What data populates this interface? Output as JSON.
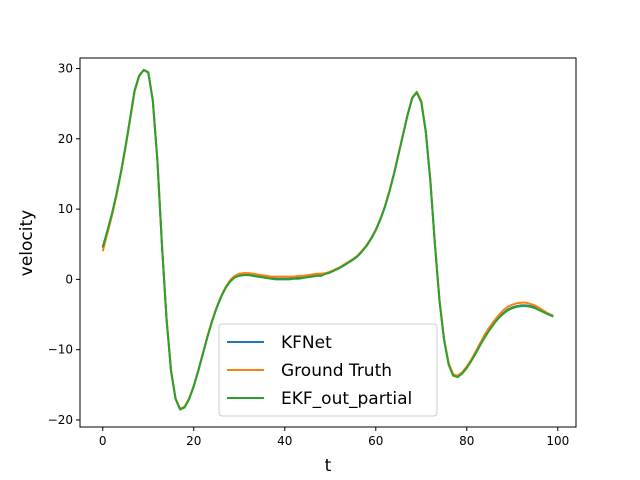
{
  "chart_data": {
    "type": "line",
    "title": "",
    "xlabel": "t",
    "ylabel": "velocity",
    "xlim": [
      -5,
      104
    ],
    "ylim": [
      -21,
      31.5
    ],
    "xticks": [
      0,
      20,
      40,
      60,
      80,
      100
    ],
    "yticks": [
      -20,
      -10,
      0,
      10,
      20,
      30
    ],
    "grid": false,
    "legend_position": "lower-center",
    "x": [
      0,
      1,
      2,
      3,
      4,
      5,
      6,
      7,
      8,
      9,
      10,
      11,
      12,
      13,
      14,
      15,
      16,
      17,
      18,
      19,
      20,
      21,
      22,
      23,
      24,
      25,
      26,
      27,
      28,
      29,
      30,
      31,
      32,
      33,
      34,
      35,
      36,
      37,
      38,
      39,
      40,
      41,
      42,
      43,
      44,
      45,
      46,
      47,
      48,
      49,
      50,
      51,
      52,
      53,
      54,
      55,
      56,
      57,
      58,
      59,
      60,
      61,
      62,
      63,
      64,
      65,
      66,
      67,
      68,
      69,
      70,
      71,
      72,
      73,
      74,
      75,
      76,
      77,
      78,
      79,
      80,
      81,
      82,
      83,
      84,
      85,
      86,
      87,
      88,
      89,
      90,
      91,
      92,
      93,
      94,
      95,
      96,
      97,
      98,
      99
    ],
    "series": [
      {
        "name": "KFNet",
        "color": "#1f77b4",
        "values": [
          4.5,
          6.8,
          9.2,
          12.0,
          15.2,
          18.8,
          22.8,
          26.8,
          29.0,
          29.8,
          29.5,
          25.5,
          17.0,
          5.0,
          -5.5,
          -13.0,
          -17.0,
          -18.5,
          -18.2,
          -17.0,
          -15.2,
          -13.0,
          -10.6,
          -8.2,
          -6.0,
          -4.1,
          -2.5,
          -1.2,
          -0.3,
          0.3,
          0.6,
          0.7,
          0.7,
          0.6,
          0.5,
          0.4,
          0.3,
          0.2,
          0.1,
          0.1,
          0.1,
          0.1,
          0.2,
          0.2,
          0.3,
          0.4,
          0.5,
          0.6,
          0.6,
          0.8,
          1.0,
          1.3,
          1.6,
          2.0,
          2.4,
          2.8,
          3.3,
          4.0,
          4.8,
          5.8,
          7.0,
          8.5,
          10.3,
          12.5,
          15.0,
          17.8,
          20.6,
          23.4,
          25.8,
          26.6,
          25.3,
          21.0,
          14.0,
          5.0,
          -3.0,
          -8.5,
          -12.0,
          -13.6,
          -13.8,
          -13.3,
          -12.5,
          -11.5,
          -10.4,
          -9.2,
          -8.1,
          -7.1,
          -6.2,
          -5.4,
          -4.8,
          -4.3,
          -4.0,
          -3.8,
          -3.7,
          -3.7,
          -3.8,
          -4.0,
          -4.3,
          -4.6,
          -4.9,
          -5.2
        ]
      },
      {
        "name": "Ground Truth",
        "color": "#ff7f0e",
        "values": [
          4.0,
          6.5,
          9.0,
          11.9,
          15.1,
          18.7,
          22.7,
          26.7,
          28.9,
          29.8,
          29.5,
          25.5,
          17.1,
          5.1,
          -5.4,
          -12.9,
          -16.9,
          -18.4,
          -18.1,
          -16.9,
          -15.1,
          -12.9,
          -10.5,
          -8.1,
          -5.9,
          -4.0,
          -2.4,
          -1.1,
          -0.1,
          0.5,
          0.8,
          0.9,
          0.9,
          0.8,
          0.7,
          0.6,
          0.5,
          0.4,
          0.4,
          0.4,
          0.4,
          0.4,
          0.4,
          0.5,
          0.5,
          0.6,
          0.7,
          0.8,
          0.8,
          0.9,
          1.1,
          1.4,
          1.7,
          2.1,
          2.5,
          2.9,
          3.4,
          4.1,
          4.9,
          5.9,
          7.1,
          8.6,
          10.4,
          12.6,
          15.1,
          17.9,
          20.7,
          23.5,
          25.9,
          26.7,
          25.4,
          21.1,
          14.1,
          5.1,
          -2.9,
          -8.4,
          -11.9,
          -13.5,
          -13.7,
          -13.2,
          -12.4,
          -11.4,
          -10.2,
          -9.0,
          -7.8,
          -6.8,
          -5.9,
          -5.1,
          -4.4,
          -3.9,
          -3.6,
          -3.4,
          -3.3,
          -3.3,
          -3.5,
          -3.7,
          -4.1,
          -4.5,
          -4.9,
          -5.3
        ]
      },
      {
        "name": "EKF_out_partial",
        "color": "#2ca02c",
        "values": [
          4.6,
          6.9,
          9.3,
          12.1,
          15.3,
          18.9,
          22.9,
          26.9,
          29.0,
          29.8,
          29.4,
          25.4,
          17.0,
          5.0,
          -5.5,
          -13.0,
          -17.0,
          -18.5,
          -18.2,
          -17.0,
          -15.2,
          -13.0,
          -10.6,
          -8.2,
          -6.0,
          -4.1,
          -2.5,
          -1.2,
          -0.3,
          0.3,
          0.5,
          0.6,
          0.6,
          0.5,
          0.4,
          0.3,
          0.2,
          0.1,
          0.0,
          0.0,
          0.0,
          0.0,
          0.1,
          0.1,
          0.2,
          0.3,
          0.4,
          0.5,
          0.5,
          0.8,
          1.0,
          1.3,
          1.6,
          2.0,
          2.4,
          2.8,
          3.3,
          4.0,
          4.8,
          5.8,
          7.0,
          8.5,
          10.3,
          12.5,
          15.0,
          17.8,
          20.6,
          23.4,
          25.8,
          26.6,
          25.2,
          20.9,
          13.9,
          4.9,
          -3.1,
          -8.6,
          -12.1,
          -13.7,
          -13.9,
          -13.4,
          -12.6,
          -11.6,
          -10.5,
          -9.3,
          -8.2,
          -7.2,
          -6.3,
          -5.5,
          -4.9,
          -4.4,
          -4.1,
          -3.9,
          -3.8,
          -3.8,
          -3.9,
          -4.1,
          -4.4,
          -4.7,
          -5.0,
          -5.3
        ]
      }
    ]
  }
}
